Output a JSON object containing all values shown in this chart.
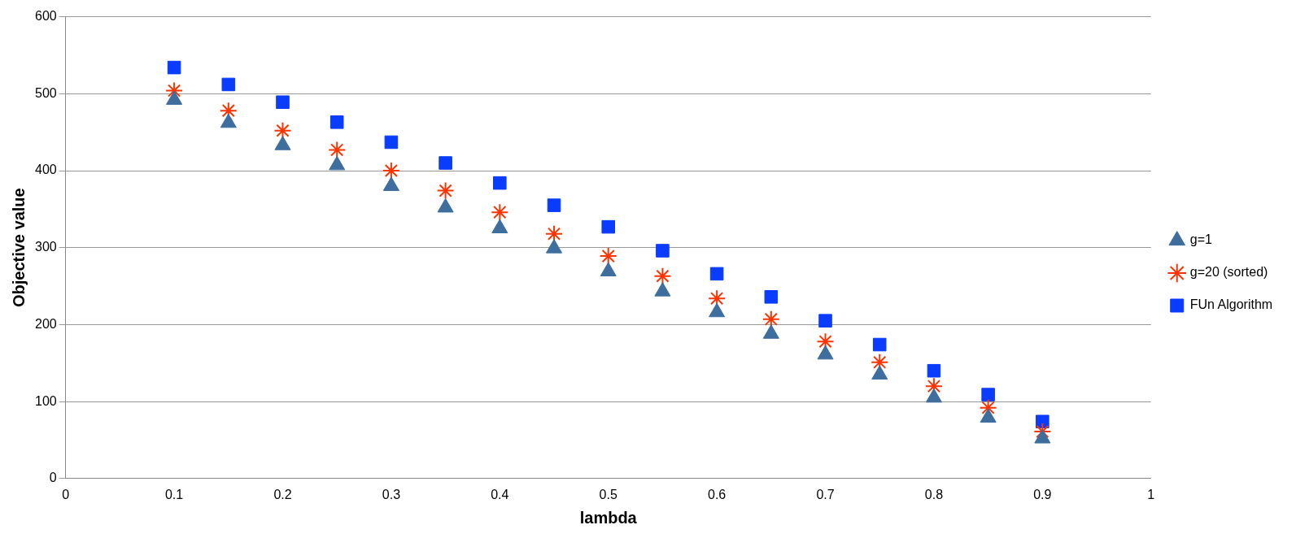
{
  "chart_data": {
    "type": "scatter",
    "xlabel": "lambda",
    "ylabel": "Objective value",
    "x": [
      0.1,
      0.15,
      0.2,
      0.25,
      0.3,
      0.35,
      0.4,
      0.45,
      0.5,
      0.55,
      0.6,
      0.65,
      0.7,
      0.75,
      0.8,
      0.85,
      0.9
    ],
    "series": [
      {
        "name": "g=1",
        "color": "#3d6e9e",
        "marker": "triangle",
        "values": [
          492,
          462,
          433,
          407,
          380,
          352,
          325,
          299,
          269,
          243,
          216,
          188,
          161,
          135,
          105,
          79,
          52
        ]
      },
      {
        "name": "g=20 (sorted)",
        "color": "#ff3300",
        "marker": "cross",
        "values": [
          504,
          478,
          452,
          427,
          400,
          374,
          346,
          318,
          289,
          263,
          234,
          207,
          178,
          151,
          120,
          92,
          61
        ]
      },
      {
        "name": "FUn Algorithm",
        "color": "#0a3cff",
        "marker": "square",
        "values": [
          534,
          512,
          489,
          463,
          437,
          410,
          384,
          355,
          327,
          296,
          266,
          236,
          205,
          174,
          140,
          109,
          74
        ]
      }
    ],
    "xlim": [
      0,
      1
    ],
    "xticks": [
      0,
      0.1,
      0.2,
      0.3,
      0.4,
      0.5,
      0.6,
      0.7,
      0.8,
      0.9,
      1
    ],
    "ylim": [
      0,
      600
    ],
    "yticks": [
      0,
      100,
      200,
      300,
      400,
      500,
      600
    ],
    "grid": "y",
    "legend": "right"
  }
}
